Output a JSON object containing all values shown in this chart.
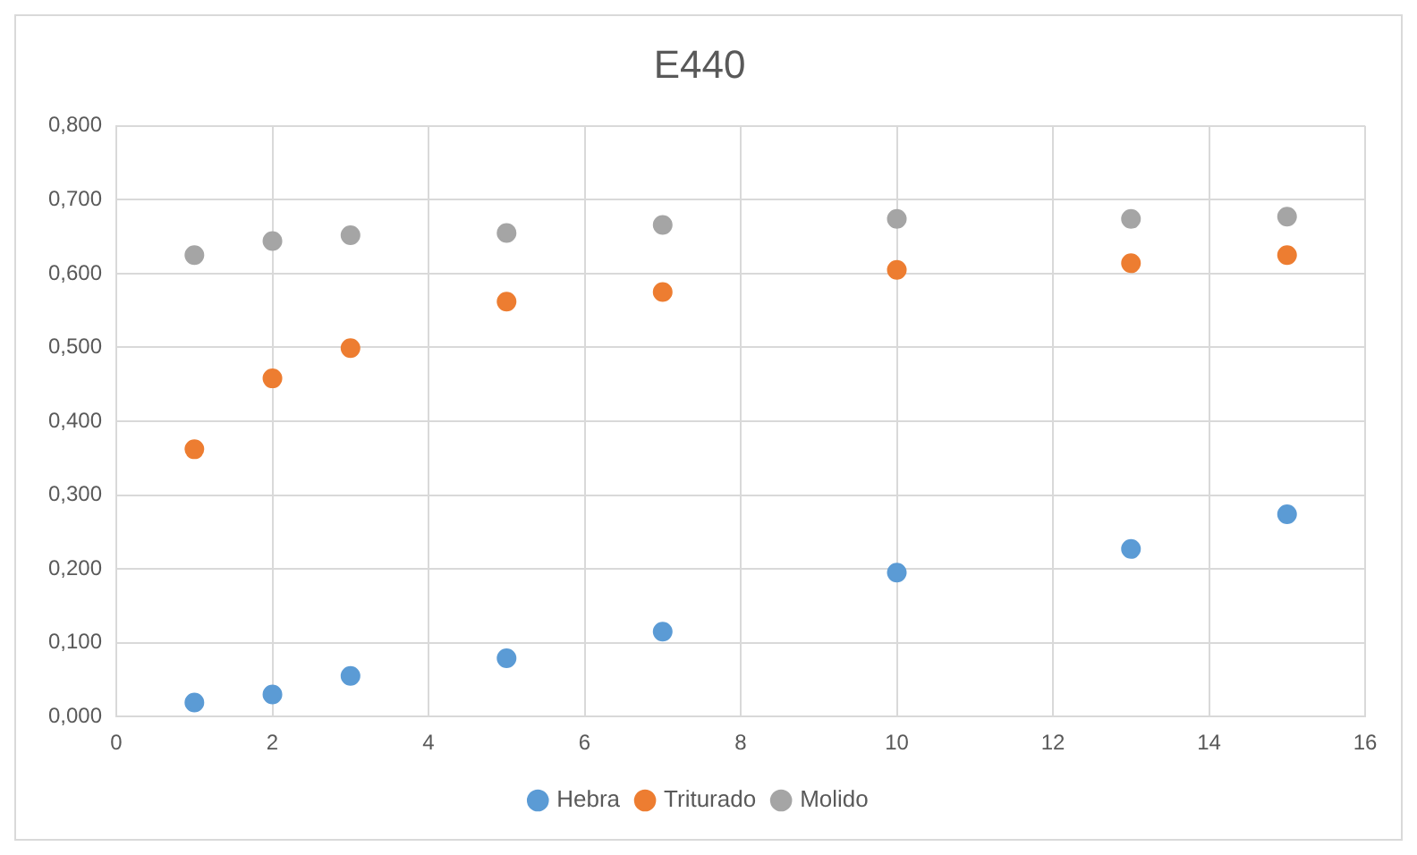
{
  "chart_data": {
    "type": "scatter",
    "title": "E440",
    "x": [
      1,
      2,
      3,
      5,
      7,
      10,
      13,
      15
    ],
    "series": [
      {
        "name": "Hebra",
        "color": "#5b9bd5",
        "values": [
          0.019,
          0.03,
          0.055,
          0.079,
          0.115,
          0.195,
          0.227,
          0.274
        ]
      },
      {
        "name": "Triturado",
        "color": "#ed7d31",
        "values": [
          0.362,
          0.458,
          0.499,
          0.562,
          0.575,
          0.605,
          0.614,
          0.625
        ]
      },
      {
        "name": "Molido",
        "color": "#a5a5a5",
        "values": [
          0.625,
          0.644,
          0.652,
          0.655,
          0.666,
          0.674,
          0.674,
          0.677
        ]
      }
    ],
    "xlim": [
      0,
      16
    ],
    "xticks": [
      0,
      2,
      4,
      6,
      8,
      10,
      12,
      14,
      16
    ],
    "ylim": [
      0,
      0.8
    ],
    "yticks": [
      {
        "value": 0,
        "label": "0,000"
      },
      {
        "value": 0.1,
        "label": "0,100"
      },
      {
        "value": 0.2,
        "label": "0,200"
      },
      {
        "value": 0.3,
        "label": "0,300"
      },
      {
        "value": 0.4,
        "label": "0,400"
      },
      {
        "value": 0.5,
        "label": "0,500"
      },
      {
        "value": 0.6,
        "label": "0,600"
      },
      {
        "value": 0.7,
        "label": "0,700"
      },
      {
        "value": 0.8,
        "label": "0,800"
      }
    ],
    "grid": true,
    "legend": "bottom",
    "marker": "circle"
  }
}
